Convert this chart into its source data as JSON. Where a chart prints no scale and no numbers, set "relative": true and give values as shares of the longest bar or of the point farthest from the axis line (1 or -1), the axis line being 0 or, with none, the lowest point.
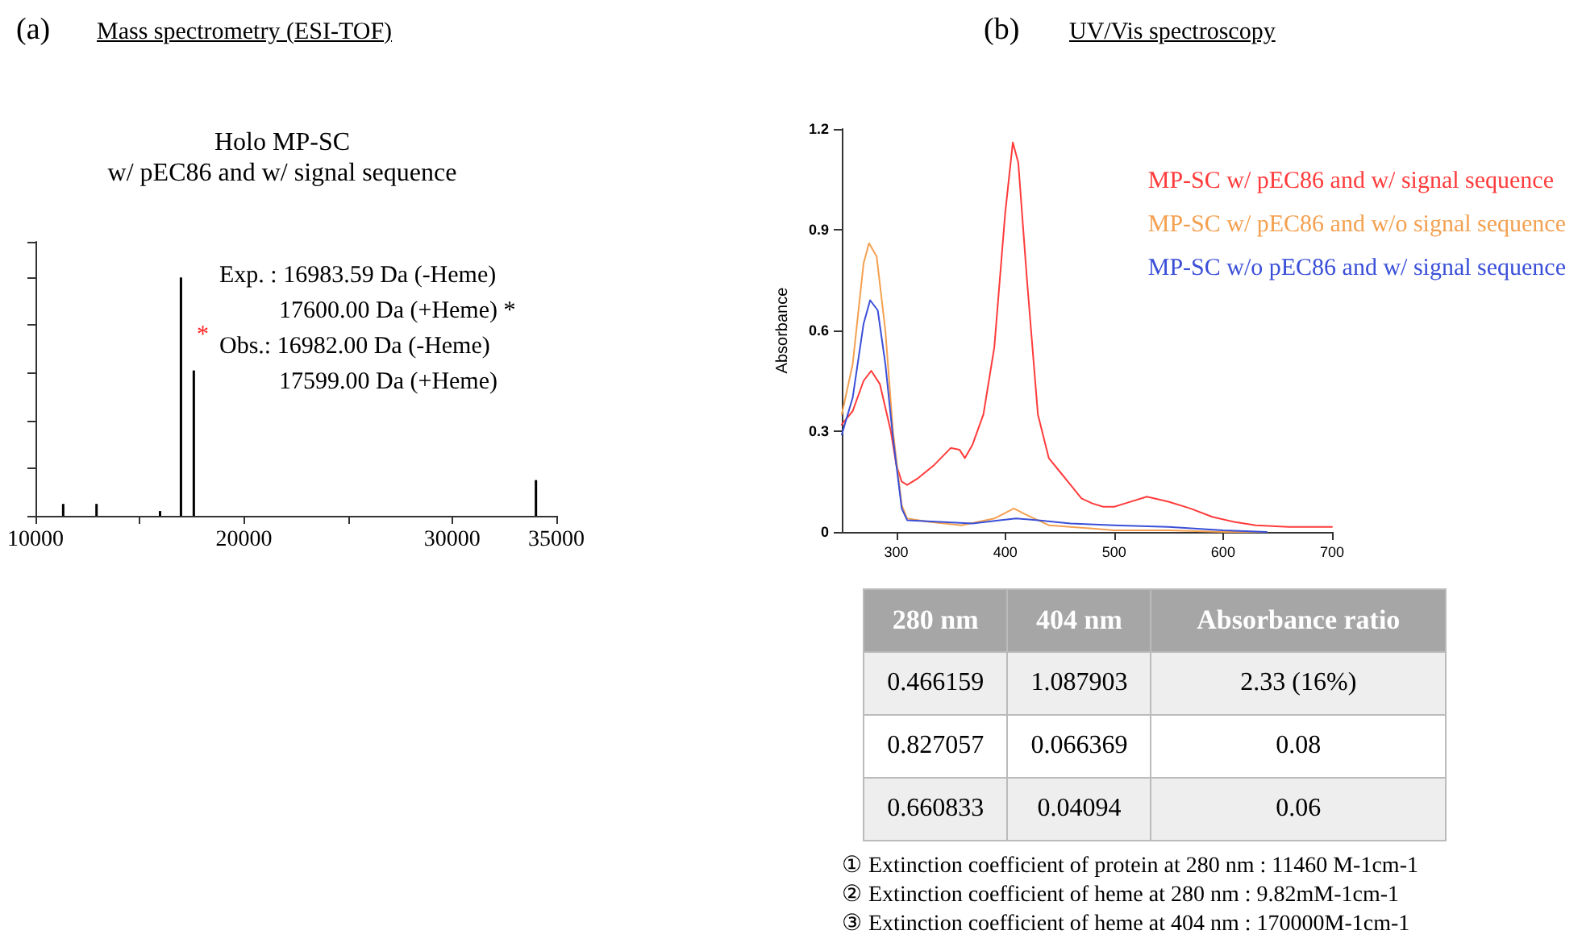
{
  "chart_data": [
    {
      "type": "bar",
      "title": "Mass spectrometry (ESI-TOF)",
      "relative": true,
      "tick_labels": "x",
      "grid": false,
      "legend": false,
      "x": [
        11330,
        12930,
        15980,
        16983,
        17599,
        34020
      ],
      "series": [
        {
          "color": "#000000",
          "values": [
            0.05,
            0.05,
            0.02,
            1,
            0.61,
            0.15
          ]
        }
      ],
      "xlim": [
        10000,
        35000
      ],
      "xticks": [
        10000,
        {
          "value": 15000,
          "label": null
        },
        20000,
        {
          "value": 25000,
          "label": null
        },
        30000,
        35000
      ],
      "annotations": [
        "(a)",
        "Holo MP-SC",
        "w/ pEC86 and w/ signal sequence",
        "Exp. : 16983.59 Da (-Heme)",
        "17600.00 Da (+Heme) *",
        "Obs.: 16982.00 Da (-Heme)",
        "17599.00 Da (+Heme)",
        "*"
      ]
    },
    {
      "type": "line",
      "title": "UV/Vis spectroscopy",
      "ylabel": "Absorbance",
      "grid": false,
      "legend": "top right",
      "marker": "none",
      "line_style": "solid",
      "xlim": [
        250,
        700
      ],
      "xticks": [
        300,
        400,
        500,
        600,
        700
      ],
      "ylim": [
        0,
        1.2
      ],
      "yticks": [
        0,
        0.3,
        0.6,
        0.9,
        1.2
      ],
      "series": [
        {
          "name": "MP-SC w/ pEC86 and w/ signal sequence",
          "color": "#ff3b3b",
          "x": [
            250,
            260,
            270,
            277,
            285,
            295,
            300,
            305,
            310,
            320,
            335,
            350,
            358,
            363,
            370,
            380,
            390,
            400,
            407,
            412,
            420,
            430,
            440,
            450,
            460,
            470,
            480,
            490,
            500,
            510,
            530,
            550,
            570,
            590,
            610,
            630,
            660,
            700
          ],
          "values": [
            0.32,
            0.36,
            0.45,
            0.48,
            0.44,
            0.3,
            0.2,
            0.15,
            0.14,
            0.16,
            0.2,
            0.25,
            0.245,
            0.22,
            0.26,
            0.35,
            0.55,
            0.95,
            1.16,
            1.1,
            0.75,
            0.35,
            0.22,
            0.18,
            0.14,
            0.1,
            0.085,
            0.075,
            0.075,
            0.085,
            0.105,
            0.09,
            0.07,
            0.045,
            0.03,
            0.02,
            0.015,
            0.015
          ]
        },
        {
          "name": "MP-SC w/ pEC86 and w/o signal sequence",
          "color": "#f4a050",
          "x": [
            250,
            260,
            270,
            275,
            282,
            290,
            297,
            305,
            310,
            330,
            360,
            390,
            408,
            420,
            440,
            480,
            500,
            550,
            600,
            640
          ],
          "values": [
            0.35,
            0.5,
            0.8,
            0.86,
            0.82,
            0.6,
            0.3,
            0.08,
            0.04,
            0.03,
            0.02,
            0.04,
            0.07,
            0.05,
            0.02,
            0.01,
            0.005,
            0.005,
            0,
            0
          ]
        },
        {
          "name": "MP-SC w/o pEC86 and w/ signal sequence",
          "color": "#3a4fd8",
          "x": [
            250,
            260,
            270,
            276,
            283,
            290,
            297,
            305,
            310,
            340,
            370,
            395,
            410,
            430,
            460,
            500,
            550,
            600,
            640
          ],
          "values": [
            0.29,
            0.4,
            0.62,
            0.69,
            0.66,
            0.5,
            0.28,
            0.07,
            0.035,
            0.03,
            0.025,
            0.035,
            0.04,
            0.035,
            0.025,
            0.02,
            0.015,
            0.005,
            0
          ]
        }
      ],
      "annotations": [
        "(b)",
        "280 nm",
        "404 nm",
        "Absorbance ratio",
        "0.466159",
        "1.087903",
        "2.33 (16%)",
        "0.827057",
        "0.066369",
        "0.08",
        "0.660833",
        "0.04094",
        "0.06",
        "①    Extinction coefficient of protein at 280 nm : 11460 M-1cm-1",
        "②    Extinction coefficient of heme at 280 nm : 9.82mM-1cm-1",
        "③    Extinction coefficient of heme at 404 nm : 170000M-1cm-1"
      ]
    }
  ]
}
